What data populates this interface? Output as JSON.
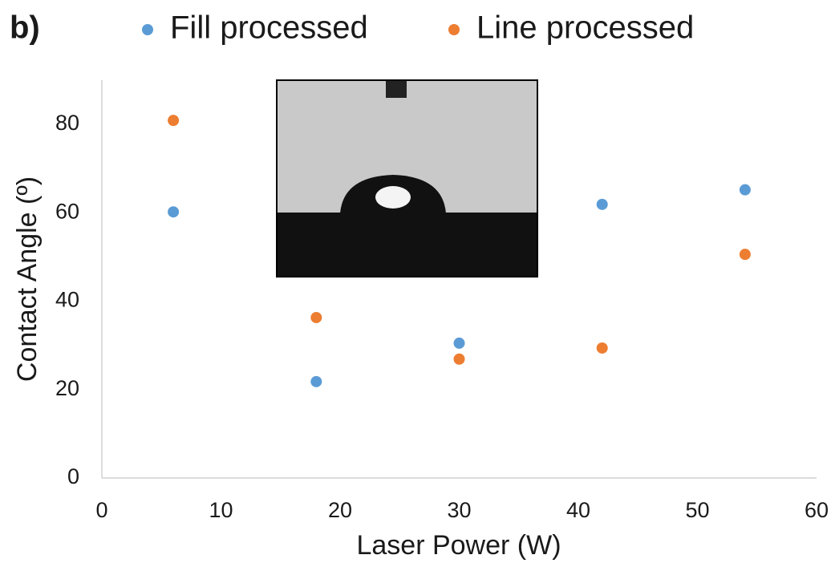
{
  "chart_data": {
    "type": "scatter",
    "panel_label": "b)",
    "x_label": "Laser Power (W)",
    "y_label": "Contact Angle (º)",
    "xlim": [
      0,
      60
    ],
    "xticks": [
      0,
      10,
      20,
      30,
      40,
      50,
      60
    ],
    "ylim": [
      0,
      90
    ],
    "yticks": [
      0,
      20,
      40,
      60,
      80
    ],
    "grid": false,
    "legend": "top",
    "series": [
      {
        "name": "Fill processed",
        "color": "#5b9bd5",
        "x": [
          6,
          18,
          30,
          42,
          54
        ],
        "values": [
          60.2,
          21.8,
          30.5,
          61.9,
          65.2
        ]
      },
      {
        "name": "Line processed",
        "color": "#ed7d31",
        "x": [
          6,
          18,
          30,
          42,
          54
        ],
        "values": [
          80.9,
          36.3,
          26.9,
          29.4,
          50.6
        ]
      }
    ]
  }
}
